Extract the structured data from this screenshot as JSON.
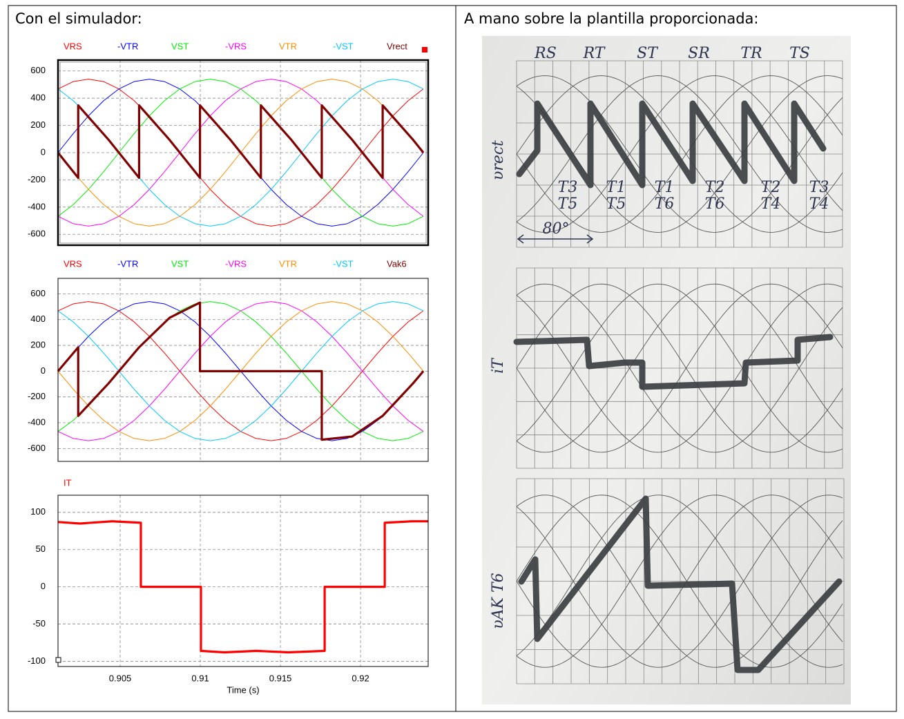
{
  "header": {
    "left": "Con el simulador:",
    "right": "A mano sobre la plantilla proporcionada:"
  },
  "chart_data": [
    {
      "type": "line",
      "x": [
        0.90112,
        0.90207,
        0.90302,
        0.90397,
        0.90492,
        0.90587,
        0.90682,
        0.90777,
        0.90872,
        0.90967,
        0.91062,
        0.91157,
        0.91252,
        0.91347,
        0.91442,
        0.91537,
        0.91632,
        0.91727,
        0.91822,
        0.91917,
        0.92012,
        0.92107,
        0.92202,
        0.92297,
        0.92392
      ],
      "xlim": [
        0.90112,
        0.92422
      ],
      "xticks": [
        0.905,
        0.91,
        0.915,
        0.92
      ],
      "ylim": [
        -680,
        680
      ],
      "yticks": [
        -600,
        -400,
        -200,
        0,
        200,
        400,
        600
      ],
      "grid": true,
      "series": [
        {
          "name": "VRS",
          "color": "#ff0000",
          "values": [
            468,
            522,
            540,
            522,
            468,
            382,
            270,
            140,
            0,
            -140,
            -270,
            -382,
            -468,
            -522,
            -540,
            -522,
            -468,
            -382,
            -270,
            -140,
            0,
            140,
            270,
            382,
            468
          ]
        },
        {
          "name": "-VTR",
          "color": "#0000ff",
          "values": [
            0,
            140,
            270,
            382,
            468,
            522,
            540,
            522,
            468,
            382,
            270,
            140,
            0,
            -140,
            -270,
            -382,
            -468,
            -522,
            -540,
            -522,
            -468,
            -382,
            -270,
            -140,
            0
          ]
        },
        {
          "name": "VST",
          "color": "#00ee00",
          "values": [
            -468,
            -382,
            -270,
            -140,
            0,
            140,
            270,
            382,
            468,
            522,
            540,
            522,
            468,
            382,
            270,
            140,
            0,
            -140,
            -270,
            -382,
            -468,
            -522,
            -540,
            -522,
            -468
          ]
        },
        {
          "name": "-VRS",
          "color": "#ff00ff",
          "values": [
            -468,
            -522,
            -540,
            -522,
            -468,
            -382,
            -270,
            -140,
            0,
            140,
            270,
            382,
            468,
            522,
            540,
            522,
            468,
            382,
            270,
            140,
            0,
            -140,
            -270,
            -382,
            -468
          ]
        },
        {
          "name": "VTR",
          "color": "#ff8c00",
          "values": [
            0,
            -140,
            -270,
            -382,
            -468,
            -522,
            -540,
            -522,
            -468,
            -382,
            -270,
            -140,
            0,
            140,
            270,
            382,
            468,
            522,
            540,
            522,
            468,
            382,
            270,
            140,
            0
          ]
        },
        {
          "name": "-VST",
          "color": "#00c8ff",
          "values": [
            468,
            382,
            270,
            140,
            0,
            -140,
            -270,
            -382,
            -468,
            -522,
            -540,
            -522,
            -468,
            -382,
            -270,
            -140,
            0,
            140,
            270,
            382,
            468,
            522,
            540,
            522,
            468
          ]
        },
        {
          "name": "Vrect",
          "color": "#800000",
          "x": [
            0.90112,
            0.90238,
            0.90238,
            0.90428,
            0.90618,
            0.90618,
            0.90808,
            0.90998,
            0.90998,
            0.91188,
            0.91378,
            0.91378,
            0.91568,
            0.91758,
            0.91758,
            0.91948,
            0.92138,
            0.92138,
            0.92328,
            0.92392
          ],
          "values": [
            0,
            -185,
            347,
            94,
            -185,
            347,
            94,
            -185,
            347,
            94,
            -185,
            347,
            94,
            -185,
            347,
            94,
            -185,
            347,
            94,
            0
          ]
        }
      ]
    },
    {
      "type": "line",
      "x": [
        0.90112,
        0.90207,
        0.90302,
        0.90397,
        0.90492,
        0.90587,
        0.90682,
        0.90777,
        0.90872,
        0.90967,
        0.91062,
        0.91157,
        0.91252,
        0.91347,
        0.91442,
        0.91537,
        0.91632,
        0.91727,
        0.91822,
        0.91917,
        0.92012,
        0.92107,
        0.92202,
        0.92297,
        0.92392
      ],
      "xlim": [
        0.90112,
        0.92422
      ],
      "xticks": [
        0.905,
        0.91,
        0.915,
        0.92
      ],
      "ylim": [
        -700,
        720
      ],
      "yticks": [
        -600,
        -400,
        -200,
        0,
        200,
        400,
        600
      ],
      "grid": true,
      "series": [
        {
          "name": "VRS",
          "color": "#ff0000",
          "values": [
            468,
            522,
            540,
            522,
            468,
            382,
            270,
            140,
            0,
            -140,
            -270,
            -382,
            -468,
            -522,
            -540,
            -522,
            -468,
            -382,
            -270,
            -140,
            0,
            140,
            270,
            382,
            468
          ]
        },
        {
          "name": "-VTR",
          "color": "#0000ff",
          "values": [
            0,
            140,
            270,
            382,
            468,
            522,
            540,
            522,
            468,
            382,
            270,
            140,
            0,
            -140,
            -270,
            -382,
            -468,
            -522,
            -540,
            -522,
            -468,
            -382,
            -270,
            -140,
            0
          ]
        },
        {
          "name": "VST",
          "color": "#00ee00",
          "values": [
            -468,
            -382,
            -270,
            -140,
            0,
            140,
            270,
            382,
            468,
            522,
            540,
            522,
            468,
            382,
            270,
            140,
            0,
            -140,
            -270,
            -382,
            -468,
            -522,
            -540,
            -522,
            -468
          ]
        },
        {
          "name": "-VRS",
          "color": "#ff00ff",
          "values": [
            -468,
            -522,
            -540,
            -522,
            -468,
            -382,
            -270,
            -140,
            0,
            140,
            270,
            382,
            468,
            522,
            540,
            522,
            468,
            382,
            270,
            140,
            0,
            -140,
            -270,
            -382,
            -468
          ]
        },
        {
          "name": "VTR",
          "color": "#ff8c00",
          "values": [
            0,
            -140,
            -270,
            -382,
            -468,
            -522,
            -540,
            -522,
            -468,
            -382,
            -270,
            -140,
            0,
            140,
            270,
            382,
            468,
            522,
            540,
            522,
            468,
            382,
            270,
            140,
            0
          ]
        },
        {
          "name": "-VST",
          "color": "#00c8ff",
          "values": [
            468,
            382,
            270,
            140,
            0,
            -140,
            -270,
            -382,
            -468,
            -522,
            -540,
            -522,
            -468,
            -382,
            -270,
            -140,
            0,
            140,
            270,
            382,
            468,
            522,
            540,
            522,
            468
          ]
        },
        {
          "name": "Vak6",
          "color": "#800000",
          "x": [
            0.90112,
            0.90238,
            0.90238,
            0.90428,
            0.90618,
            0.90808,
            0.90998,
            0.90998,
            0.91758,
            0.91758,
            0.91948,
            0.92138,
            0.92328,
            0.92392
          ],
          "values": [
            0,
            185,
            -347,
            -94,
            185,
            414,
            532,
            0,
            0,
            -532,
            -507,
            -347,
            -94,
            0
          ]
        }
      ]
    },
    {
      "type": "line",
      "xlim": [
        0.90112,
        0.92422
      ],
      "xticks": [
        0.905,
        0.91,
        0.915,
        0.92
      ],
      "xlabel": "Time (s)",
      "ylim": [
        -107,
        123
      ],
      "yticks": [
        -100,
        -50,
        0,
        50,
        100
      ],
      "grid": true,
      "series": [
        {
          "name": "IT",
          "color": "#ff0000",
          "x": [
            0.90112,
            0.9025,
            0.9045,
            0.90629,
            0.90629,
            0.91004,
            0.91004,
            0.9115,
            0.9135,
            0.9155,
            0.91776,
            0.91776,
            0.92151,
            0.92151,
            0.9232,
            0.92422
          ],
          "values": [
            87,
            85,
            88,
            86,
            0,
            0,
            -86,
            -88,
            -86,
            -88,
            -86,
            0,
            0,
            86,
            88,
            88
          ]
        }
      ]
    }
  ],
  "photo": {
    "phase_labels": [
      "RS",
      "RT",
      "ST",
      "SR",
      "TR",
      "TS"
    ],
    "thyristor_labels": [
      [
        "T3",
        "T5"
      ],
      [
        "T1",
        "T5"
      ],
      [
        "T1",
        "T6"
      ],
      [
        "T2",
        "T6"
      ],
      [
        "T2",
        "T4"
      ],
      [
        "T3",
        "T4"
      ]
    ],
    "angle_label": "80°",
    "axis_labels": [
      "υrect",
      "iT",
      "υAK T6"
    ]
  }
}
